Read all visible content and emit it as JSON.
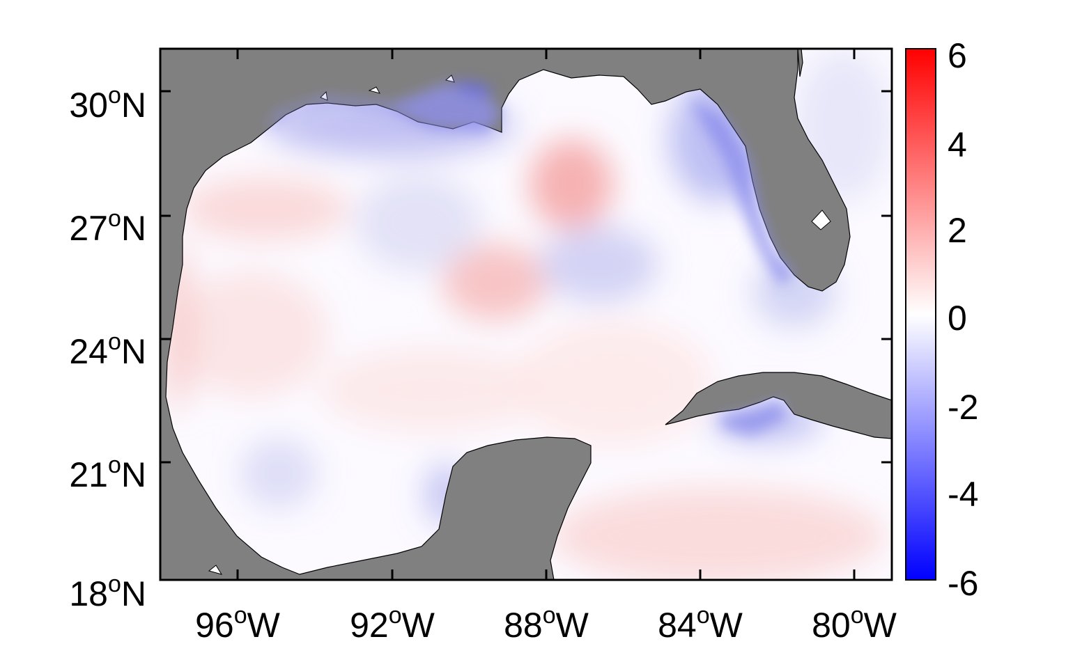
{
  "map": {
    "type": "anomaly-map",
    "colors": {
      "land": "#808080",
      "frame": "#000000",
      "positive": "#ff0000",
      "neutral": "#ffffff",
      "negative": "#0000ff"
    },
    "axes": {
      "x_ticks": [
        {
          "deg": "96",
          "sup": "o",
          "dir": "W"
        },
        {
          "deg": "92",
          "sup": "o",
          "dir": "W"
        },
        {
          "deg": "88",
          "sup": "o",
          "dir": "W"
        },
        {
          "deg": "84",
          "sup": "o",
          "dir": "W"
        },
        {
          "deg": "80",
          "sup": "o",
          "dir": "W"
        }
      ],
      "y_ticks": [
        {
          "deg": "30",
          "sup": "o",
          "dir": "N"
        },
        {
          "deg": "27",
          "sup": "o",
          "dir": "N"
        },
        {
          "deg": "24",
          "sup": "o",
          "dir": "N"
        },
        {
          "deg": "21",
          "sup": "o",
          "dir": "N"
        },
        {
          "deg": "18",
          "sup": "o",
          "dir": "N"
        }
      ]
    },
    "colorbar": {
      "min": -6,
      "max": 6,
      "ticks": [
        "6",
        "4",
        "2",
        "0",
        "-2",
        "-4",
        "-6"
      ]
    }
  }
}
